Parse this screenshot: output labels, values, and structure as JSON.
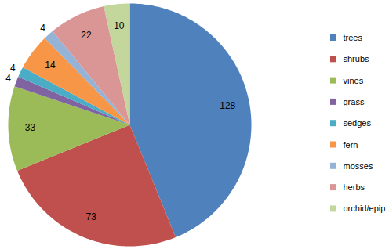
{
  "chart_data": {
    "type": "pie",
    "categories": [
      "trees",
      "shrubs",
      "vines",
      "grass",
      "sedges",
      "fern",
      "mosses",
      "herbs",
      "orchid/epip"
    ],
    "values": [
      128,
      73,
      33,
      4,
      4,
      14,
      4,
      22,
      10
    ],
    "colors": [
      "#4F81BD",
      "#C0504D",
      "#9BBB59",
      "#8064A2",
      "#4BACC6",
      "#F79646",
      "#95B3D7",
      "#D99694",
      "#C3D69B"
    ],
    "data_labels": true,
    "legend": "right"
  }
}
